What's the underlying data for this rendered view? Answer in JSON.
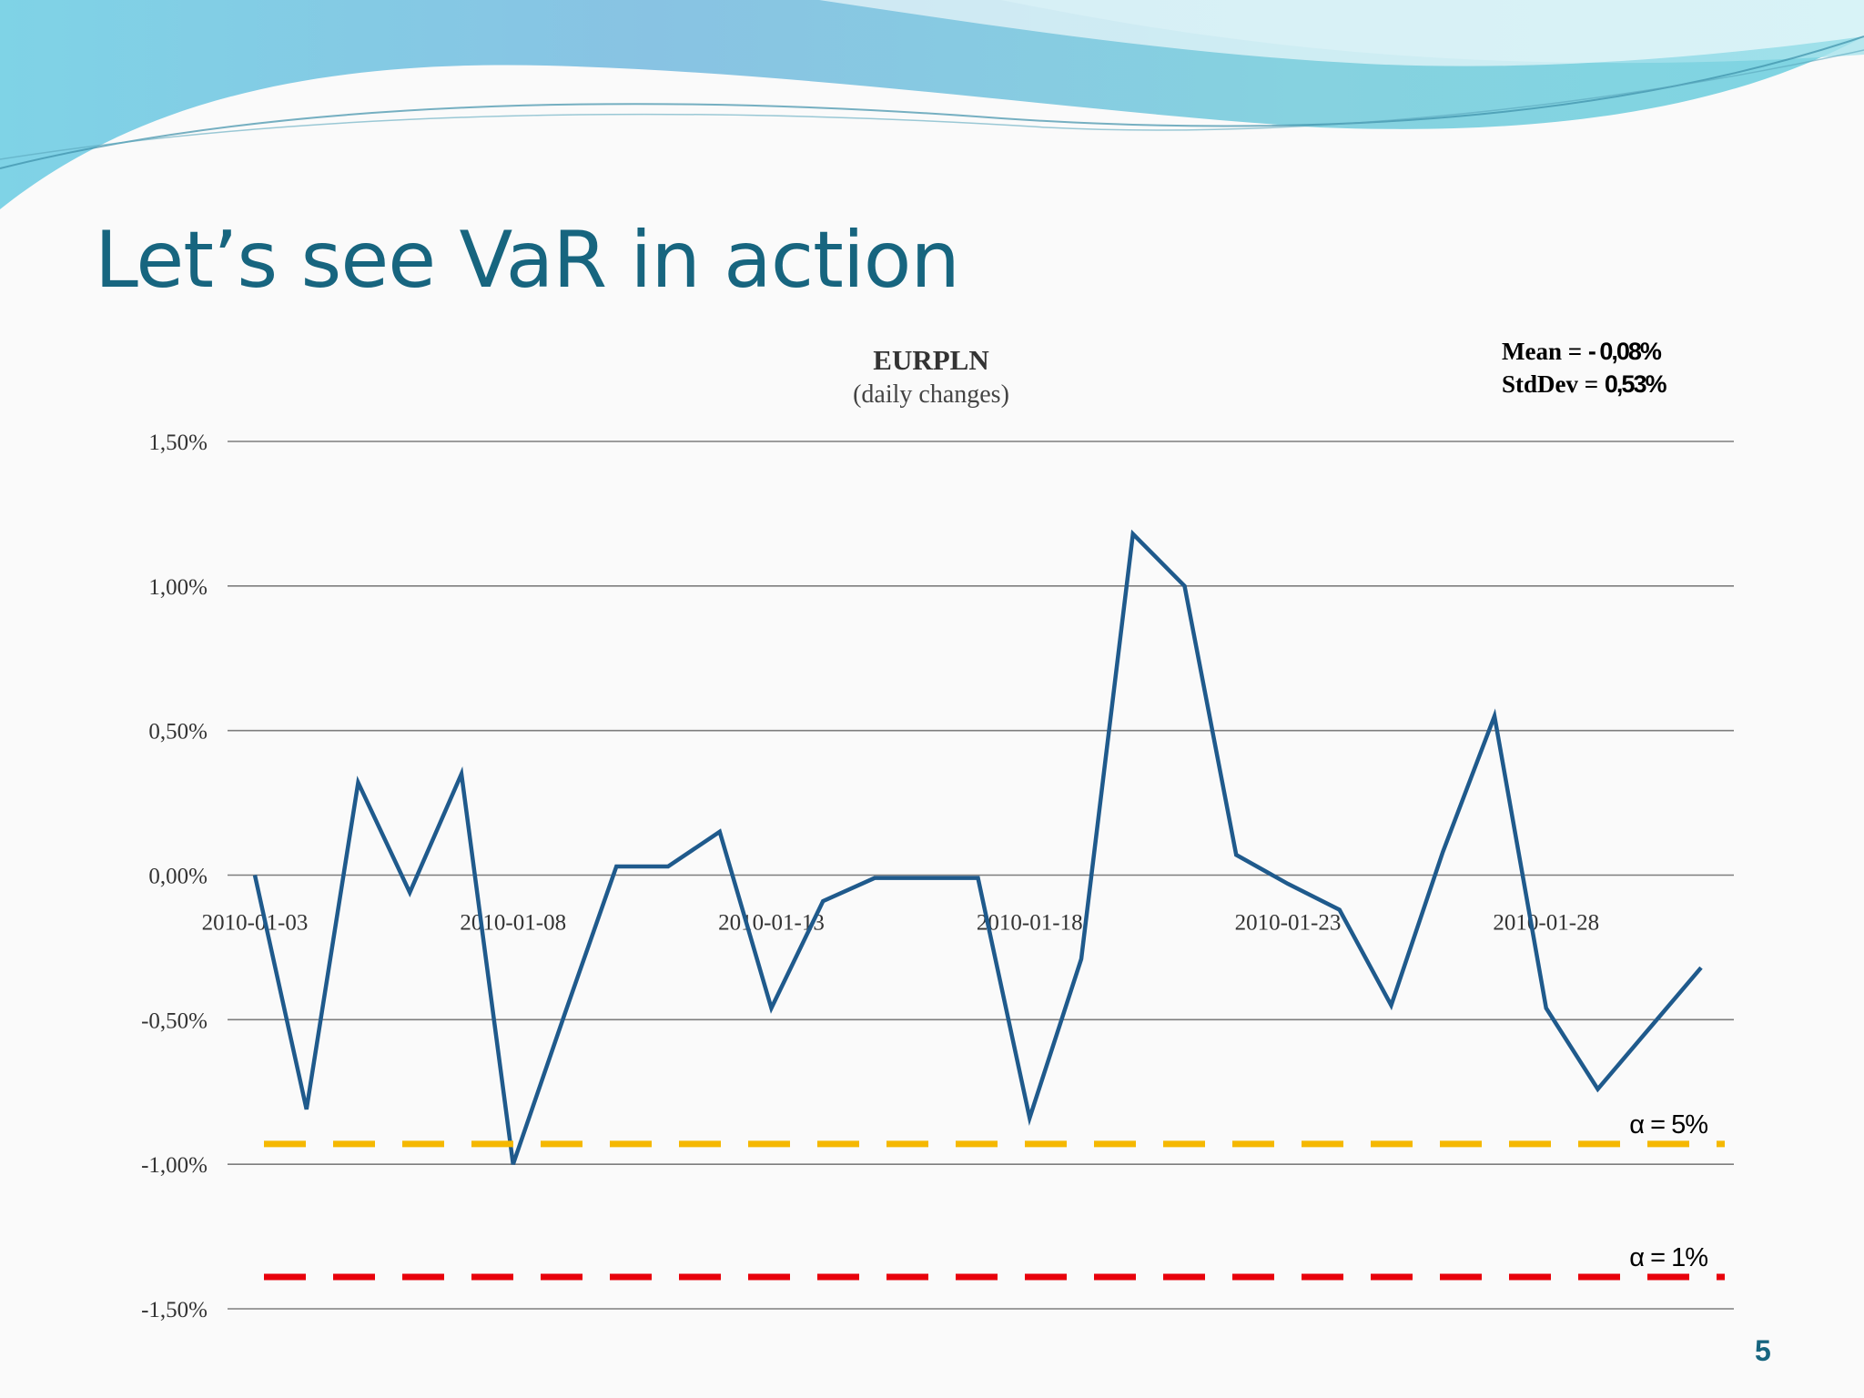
{
  "slide": {
    "title": "Let’s see VaR in action",
    "page_number": "5",
    "stats": {
      "mean_label": "Mean = ",
      "mean_value": "- 0,08%",
      "stddev_label": "StdDev = ",
      "stddev_value": "0,53%"
    },
    "colors": {
      "title": "#17657f",
      "series": "#1f5a8c",
      "var_5": "#f5b800",
      "var_1": "#e8000b",
      "wave_light": "#8fd8e6",
      "wave_dark": "#5ba9d2"
    }
  },
  "chart_data": {
    "type": "line",
    "title": "EURPLN",
    "subtitle": "(daily changes)",
    "y_ticks": [
      "1,50%",
      "1,00%",
      "0,50%",
      "0,00%",
      "-0,50%",
      "-1,00%",
      "-1,50%"
    ],
    "y_tick_values": [
      1.5,
      1.0,
      0.5,
      0.0,
      -0.5,
      -1.0,
      -1.5
    ],
    "ylim": [
      -1.5,
      1.5
    ],
    "x_tick_labels": [
      "2010-01-03",
      "2010-01-08",
      "2010-01-13",
      "2010-01-18",
      "2010-01-23",
      "2010-01-28"
    ],
    "x_tick_index": [
      0,
      5,
      10,
      15,
      20,
      25
    ],
    "grid": true,
    "series": [
      {
        "values": [
          0.0,
          -0.81,
          0.32,
          -0.06,
          0.35,
          -1.0,
          -0.48,
          0.03,
          0.03,
          0.15,
          -0.46,
          -0.09,
          -0.01,
          -0.01,
          -0.01,
          -0.84,
          -0.29,
          1.18,
          1.0,
          0.07,
          -0.03,
          -0.12,
          -0.45,
          0.08,
          0.55,
          -0.46,
          -0.74,
          -0.53,
          -0.32
        ]
      }
    ],
    "reference_lines": [
      {
        "label": "α = 5%",
        "value": -0.93,
        "color": "#f5b800",
        "style": "dashed"
      },
      {
        "label": "α = 1%",
        "value": -1.39,
        "color": "#e8000b",
        "style": "dashed"
      }
    ]
  }
}
